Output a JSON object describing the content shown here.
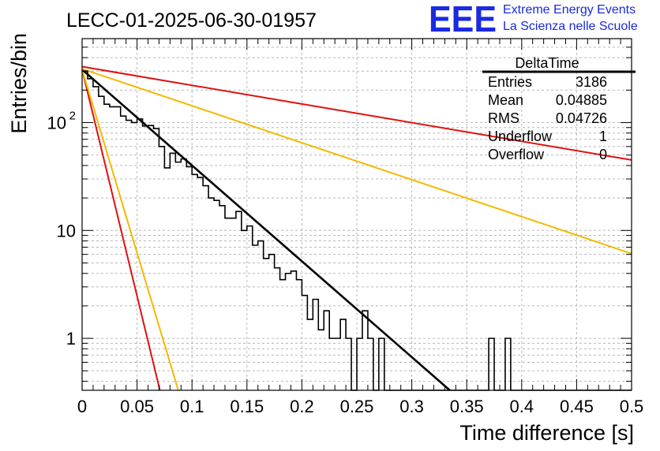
{
  "chart_data": {
    "type": "line",
    "title": "LECC-01-2025-06-30-01957",
    "xlabel": "Time difference [s]",
    "ylabel": "Entries/bin",
    "xlim": [
      0,
      0.5
    ],
    "ylim": [
      0.33,
      600
    ],
    "yscale": "log",
    "grid": true,
    "x_ticks": [
      "0",
      "0.05",
      "0.1",
      "0.15",
      "0.2",
      "0.25",
      "0.3",
      "0.35",
      "0.4",
      "0.45",
      "0.5"
    ],
    "y_ticks": [
      {
        "value": 1,
        "label": "1",
        "exp": ""
      },
      {
        "value": 10,
        "label": "10",
        "exp": ""
      },
      {
        "value": 100,
        "label": "10",
        "exp": "2"
      }
    ],
    "histogram": {
      "name": "DeltaTime",
      "bin_width": 0.005,
      "counts": [
        300,
        255,
        215,
        175,
        148,
        140,
        140,
        115,
        105,
        100,
        108,
        93,
        94,
        88,
        60,
        38,
        52,
        43,
        46,
        39,
        33,
        31,
        26,
        20,
        19,
        17,
        13,
        13,
        15,
        10,
        11,
        7.3,
        8,
        5.5,
        6,
        4.5,
        3.5,
        4,
        4.2,
        3.5,
        2.5,
        1.5,
        2.3,
        1.2,
        1.8,
        1,
        1,
        1.5,
        1,
        0,
        1,
        1.8,
        1,
        0,
        1,
        0,
        0,
        0,
        0,
        0,
        0,
        0,
        0,
        0,
        0,
        0,
        0,
        0,
        0,
        0,
        0,
        0,
        0,
        0,
        1,
        0,
        0,
        1,
        0,
        0,
        0,
        0,
        0,
        0,
        0,
        0,
        0,
        0,
        0,
        0,
        0,
        0,
        0,
        0,
        0,
        0,
        0,
        0,
        0,
        0
      ]
    },
    "series": [
      {
        "color": "#000000",
        "x": [
          0,
          0.3346
        ],
        "y": [
          310,
          0.33
        ]
      },
      {
        "color": "#e01010",
        "x": [
          0,
          0.5
        ],
        "y": [
          330,
          45
        ]
      },
      {
        "color": "#f5b800",
        "x": [
          0,
          0.5
        ],
        "y": [
          315,
          6.1
        ]
      },
      {
        "color": "#e01010",
        "x": [
          0,
          0.0708
        ],
        "y": [
          310,
          0.33
        ]
      },
      {
        "color": "#f5b800",
        "x": [
          0,
          0.0875
        ],
        "y": [
          310,
          0.33
        ]
      }
    ],
    "stats": {
      "title": "DeltaTime",
      "rows": [
        {
          "label": "Entries",
          "value": "3186"
        },
        {
          "label": "Mean",
          "value": "0.04885"
        },
        {
          "label": "RMS",
          "value": "0.04726"
        },
        {
          "label": "Underflow",
          "value": "1"
        },
        {
          "label": "Overflow",
          "value": "0"
        }
      ]
    }
  },
  "logo": {
    "mark": "EEE",
    "line1": "Extreme Energy Events",
    "line2": "La Scienza nelle Scuole",
    "color": "#1a2be0"
  }
}
